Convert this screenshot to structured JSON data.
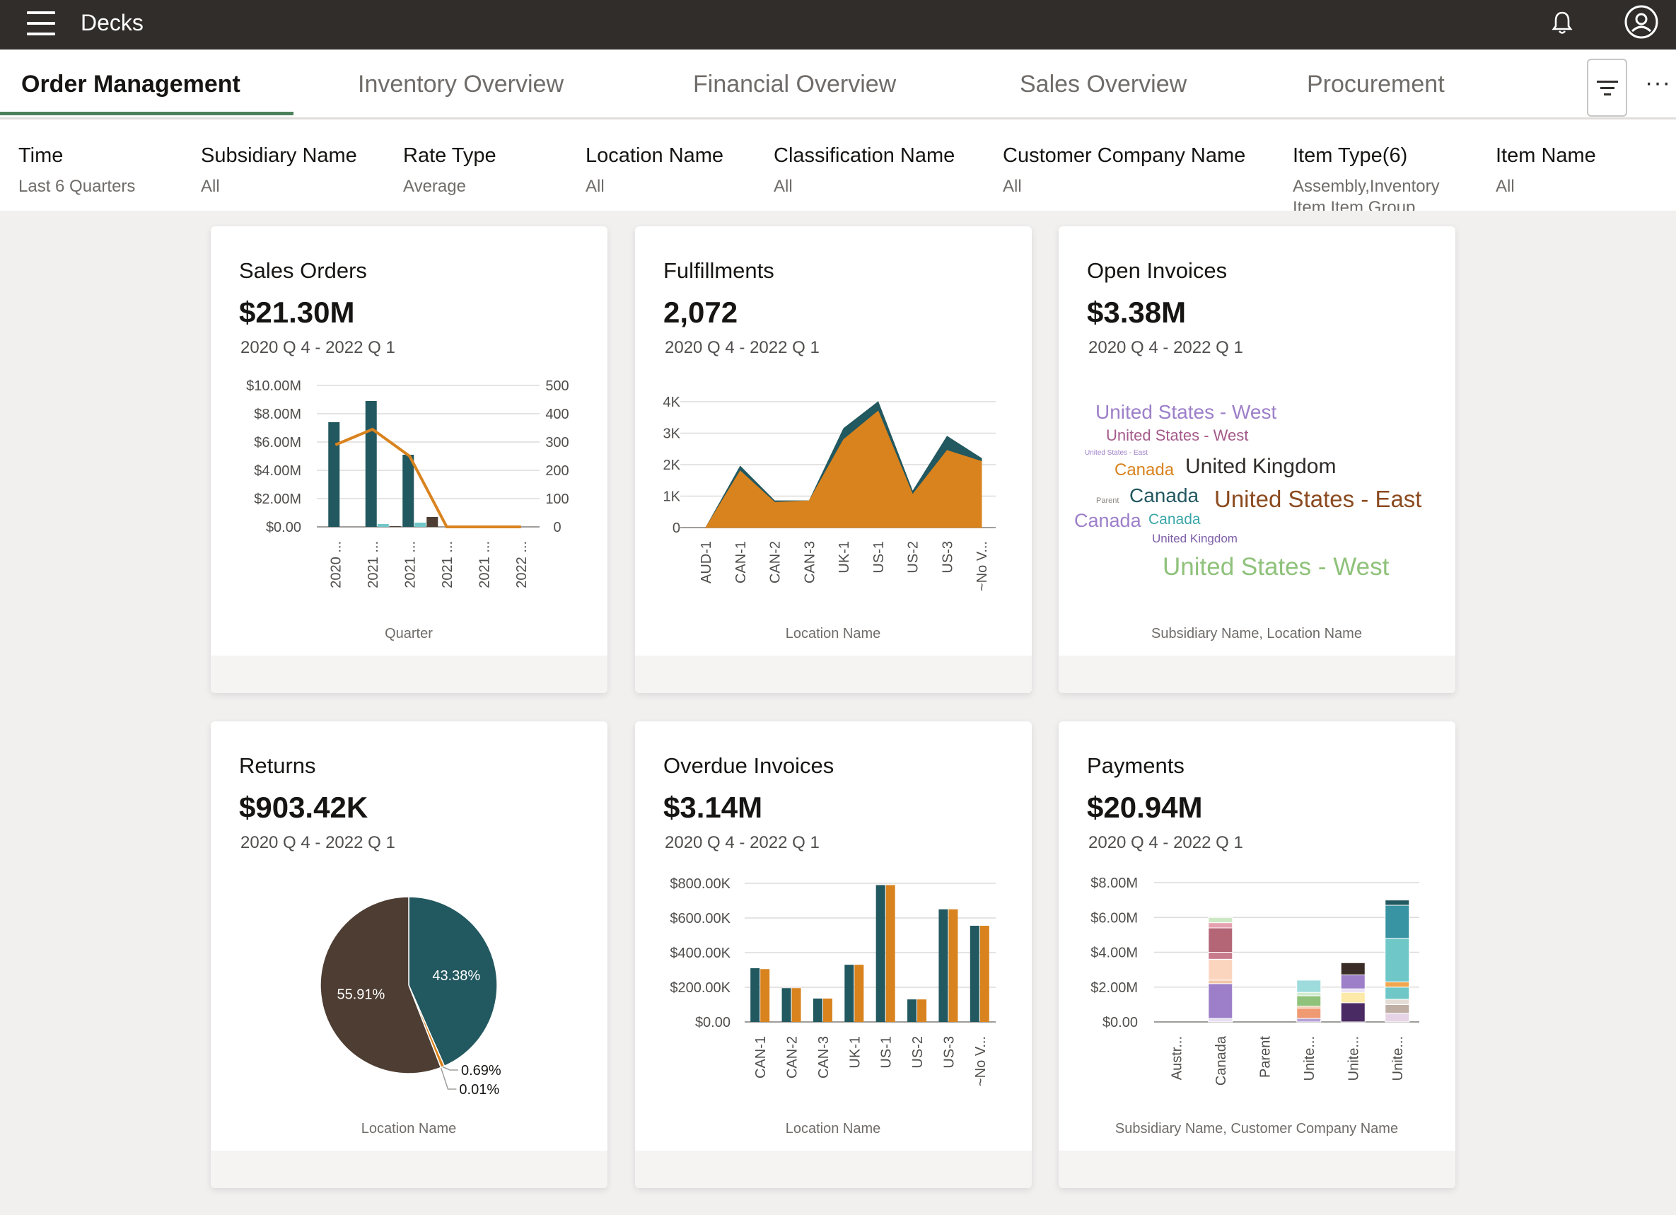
{
  "header": {
    "title": "Decks"
  },
  "tabs": [
    {
      "label": "Order Management",
      "active": true
    },
    {
      "label": "Inventory Overview"
    },
    {
      "label": "Financial Overview"
    },
    {
      "label": "Sales Overview"
    },
    {
      "label": "Procurement"
    }
  ],
  "filters": [
    {
      "label": "Time",
      "value": "Last 6 Quarters"
    },
    {
      "label": "Subsidiary Name",
      "value": "All"
    },
    {
      "label": "Rate Type",
      "value": "Average"
    },
    {
      "label": "Location Name",
      "value": "All"
    },
    {
      "label": "Classification Name",
      "value": "All"
    },
    {
      "label": "Customer Company Name",
      "value": "All"
    },
    {
      "label": "Item Type(6)",
      "value": "Assembly,Inventory Item,Item Group"
    },
    {
      "label": "Item Name",
      "value": "All"
    }
  ],
  "colors": {
    "teal": "#22585f",
    "orange": "#d9831f",
    "brown": "#4d3d33",
    "light_teal": "#6fc7c8",
    "topbar": "#312d2a",
    "accent": "#4c825c"
  },
  "cards": {
    "sales_orders": {
      "title": "Sales Orders",
      "value": "$21.30M",
      "period": "2020 Q 4 - 2022 Q 1",
      "axis_title": "Quarter"
    },
    "fulfillments": {
      "title": "Fulfillments",
      "value": "2,072",
      "period": "2020 Q 4 - 2022 Q 1",
      "axis_title": "Location Name"
    },
    "open_invoices": {
      "title": "Open Invoices",
      "value": "$3.38M",
      "period": "2020 Q 4 - 2022 Q 1",
      "axis_title": "Subsidiary Name, Location Name"
    },
    "returns": {
      "title": "Returns",
      "value": "$903.42K",
      "period": "2020 Q 4 - 2022 Q 1",
      "axis_title": "Location Name"
    },
    "overdue_invoices": {
      "title": "Overdue Invoices",
      "value": "$3.14M",
      "period": "2020 Q 4 - 2022 Q 1",
      "axis_title": "Location Name"
    },
    "payments": {
      "title": "Payments",
      "value": "$20.94M",
      "period": "2020 Q 4 - 2022 Q 1",
      "axis_title": "Subsidiary Name, Customer Company Name"
    }
  },
  "chart_data": [
    {
      "id": "sales_orders",
      "type": "bar",
      "categories": [
        "2020 ...",
        "2021 ...",
        "2021 ...",
        "2021 ...",
        "2021 ...",
        "2022 ..."
      ],
      "series": [
        {
          "values": [
            7.4,
            8.9,
            5.1,
            0,
            0,
            0
          ],
          "color": "#22585f"
        },
        {
          "values": [
            0,
            0.2,
            0.3,
            0,
            0,
            0
          ],
          "color": "#6fc7c8"
        },
        {
          "values": [
            0,
            0.05,
            0.7,
            0,
            0,
            0
          ],
          "color": "#4d3d33"
        },
        {
          "type": "line",
          "axis": "y2",
          "values": [
            290,
            345,
            250,
            0,
            0,
            0
          ],
          "color": "#d9831f"
        }
      ],
      "yticks": [
        "$0.00",
        "$2.00M",
        "$4.00M",
        "$6.00M",
        "$8.00M",
        "$10.00M"
      ],
      "y2ticks": [
        "0",
        "100",
        "200",
        "300",
        "400",
        "500"
      ],
      "ylim": [
        0,
        10
      ],
      "y2lim": [
        0,
        500
      ],
      "xlabel": "Quarter"
    },
    {
      "id": "fulfillments",
      "type": "area",
      "categories": [
        "AUD-1",
        "CAN-1",
        "CAN-2",
        "CAN-3",
        "UK-1",
        "US-1",
        "US-2",
        "US-3",
        "~No V..."
      ],
      "series": [
        {
          "values": [
            0,
            1950,
            850,
            850,
            3150,
            4000,
            1150,
            2900,
            2200
          ],
          "color": "#22585f"
        },
        {
          "values": [
            0,
            1800,
            800,
            850,
            2800,
            3700,
            1050,
            2450,
            2100
          ],
          "color": "#d9831f"
        }
      ],
      "yticks": [
        "0",
        "1K",
        "2K",
        "3K",
        "4K"
      ],
      "ylim": [
        0,
        4000
      ],
      "xlabel": "Location Name"
    },
    {
      "id": "open_invoices",
      "type": "tag-cloud",
      "words": [
        {
          "text": "United States - West",
          "size": 28,
          "color": "#9d7fc9"
        },
        {
          "text": "United States - West",
          "size": 22,
          "color": "#a55a8b"
        },
        {
          "text": "United States - East",
          "size": 10,
          "color": "#9d7fc9"
        },
        {
          "text": "Canada",
          "size": 24,
          "color": "#d9831f"
        },
        {
          "text": "United Kingdom",
          "size": 30,
          "color": "#2f2b28"
        },
        {
          "text": "Parent",
          "size": 11,
          "color": "#8a8583"
        },
        {
          "text": "Canada",
          "size": 28,
          "color": "#22585f"
        },
        {
          "text": "United States - East",
          "size": 33,
          "color": "#8b4a1f"
        },
        {
          "text": "Canada",
          "size": 27,
          "color": "#9d7fc9"
        },
        {
          "text": "Canada",
          "size": 21,
          "color": "#3aa6a8"
        },
        {
          "text": "United Kingdom",
          "size": 17,
          "color": "#7d5fa8"
        },
        {
          "text": "United States - West",
          "size": 35,
          "color": "#8fc27b"
        }
      ],
      "xlabel": "Subsidiary Name, Location Name"
    },
    {
      "id": "returns",
      "type": "pie",
      "slices": [
        {
          "value": 43.38,
          "label": "43.38%",
          "color": "#22585f"
        },
        {
          "value": 0.69,
          "label": "0.69%",
          "color": "#d9831f"
        },
        {
          "value": 0.01,
          "label": "0.01%",
          "color": "#6fc7c8"
        },
        {
          "value": 55.91,
          "label": "55.91%",
          "color": "#4d3d33"
        }
      ],
      "xlabel": "Location Name"
    },
    {
      "id": "overdue_invoices",
      "type": "bar",
      "categories": [
        "CAN-1",
        "CAN-2",
        "CAN-3",
        "UK-1",
        "US-1",
        "US-2",
        "US-3",
        "~No V..."
      ],
      "series": [
        {
          "values": [
            310,
            195,
            135,
            330,
            790,
            130,
            650,
            555
          ],
          "color": "#22585f"
        },
        {
          "values": [
            305,
            195,
            135,
            330,
            790,
            130,
            650,
            555
          ],
          "color": "#d9831f"
        }
      ],
      "yticks": [
        "$0.00",
        "$200.00K",
        "$400.00K",
        "$600.00K",
        "$800.00K"
      ],
      "ylim": [
        0,
        800
      ],
      "xlabel": "Location Name"
    },
    {
      "id": "payments",
      "type": "stacked-bar",
      "categories": [
        "Austr...",
        "Canada",
        "Parent",
        "Unite...",
        "Unite...",
        "Unite..."
      ],
      "stacks": [
        [],
        [
          {
            "v": 0.2,
            "c": "#e8dff2"
          },
          {
            "v": 2.0,
            "c": "#9d7fc9"
          },
          {
            "v": 0.2,
            "c": "#f3c6a6"
          },
          {
            "v": 1.2,
            "c": "#fcd5bf"
          },
          {
            "v": 0.4,
            "c": "#c87b8c"
          },
          {
            "v": 1.4,
            "c": "#b46677"
          },
          {
            "v": 0.3,
            "c": "#e6a1b0"
          },
          {
            "v": 0.3,
            "c": "#cde8c4"
          }
        ],
        [],
        [
          {
            "v": 0.2,
            "c": "#b3a1d5"
          },
          {
            "v": 0.6,
            "c": "#f09a74"
          },
          {
            "v": 0.1,
            "c": "#f5c0a2"
          },
          {
            "v": 0.6,
            "c": "#8fc27b"
          },
          {
            "v": 0.2,
            "c": "#d2ecd2"
          },
          {
            "v": 0.7,
            "c": "#9edbdc"
          }
        ],
        [
          {
            "v": 1.1,
            "c": "#4a2a63"
          },
          {
            "v": 0.6,
            "c": "#fde9a8"
          },
          {
            "v": 0.2,
            "c": "#e8dff2"
          },
          {
            "v": 0.8,
            "c": "#9d7fc9"
          },
          {
            "v": 0.7,
            "c": "#3a2d28"
          }
        ],
        [
          {
            "v": 0.5,
            "c": "#e6d4e6"
          },
          {
            "v": 0.5,
            "c": "#bfaea4"
          },
          {
            "v": 0.3,
            "c": "#e4dcd5"
          },
          {
            "v": 0.7,
            "c": "#6fc7c8"
          },
          {
            "v": 0.3,
            "c": "#f1a64e"
          },
          {
            "v": 2.5,
            "c": "#6fc7c8"
          },
          {
            "v": 1.9,
            "c": "#3893a2"
          },
          {
            "v": 0.3,
            "c": "#22585f"
          }
        ]
      ],
      "yticks": [
        "$0.00",
        "$2.00M",
        "$4.00M",
        "$6.00M",
        "$8.00M"
      ],
      "ylim": [
        0,
        8
      ],
      "xlabel": "Subsidiary Name, Customer Company Name"
    }
  ]
}
